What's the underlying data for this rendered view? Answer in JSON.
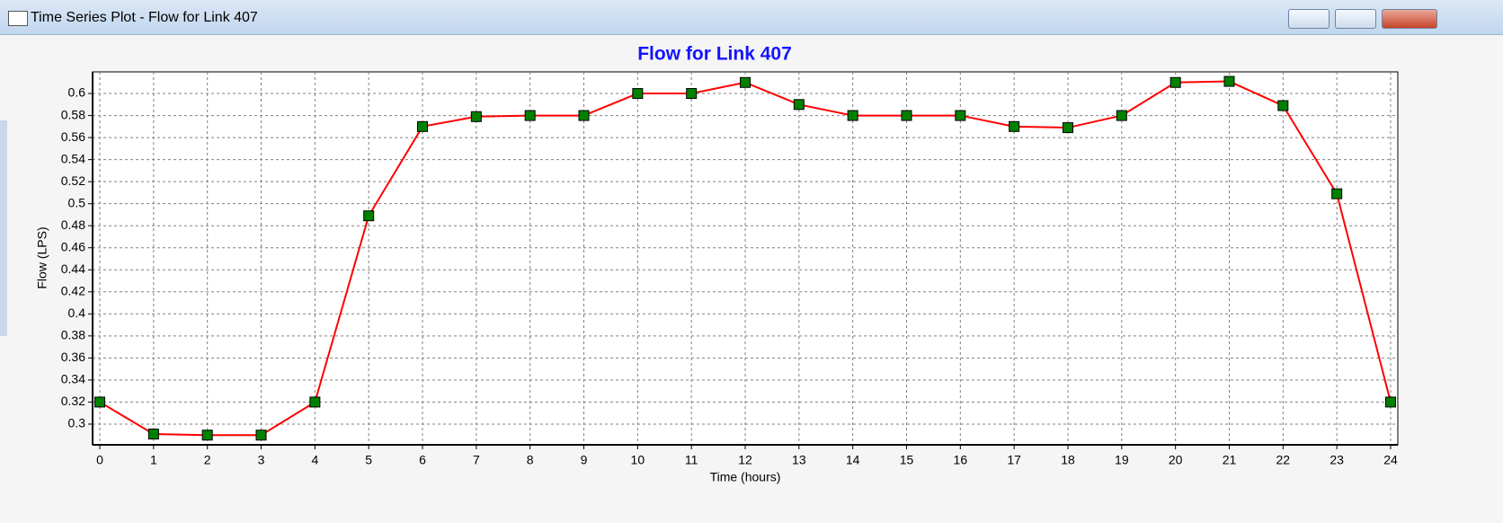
{
  "window": {
    "title": "Time Series Plot - Flow for Link 407"
  },
  "chart_data": {
    "type": "line",
    "title": "Flow for Link 407",
    "x_label": "Time (hours)",
    "y_label": "Flow (LPS)",
    "x": [
      0,
      1,
      2,
      3,
      4,
      5,
      6,
      7,
      8,
      9,
      10,
      11,
      12,
      13,
      14,
      15,
      16,
      17,
      18,
      19,
      20,
      21,
      22,
      23,
      24
    ],
    "series": [
      {
        "color": "#ff0000",
        "marker_color": "#008000",
        "values": [
          0.32,
          0.291,
          0.29,
          0.29,
          0.32,
          0.489,
          0.57,
          0.579,
          0.58,
          0.58,
          0.6,
          0.6,
          0.61,
          0.59,
          0.58,
          0.58,
          0.58,
          0.57,
          0.569,
          0.58,
          0.61,
          0.611,
          0.589,
          0.509,
          0.32
        ]
      }
    ],
    "xlim": [
      -0.134,
      24.134
    ],
    "xticks": [
      0,
      1,
      2,
      3,
      4,
      5,
      6,
      7,
      8,
      9,
      10,
      11,
      12,
      13,
      14,
      15,
      16,
      17,
      18,
      19,
      20,
      21,
      22,
      23,
      24
    ],
    "ylim": [
      0.2812,
      0.6196
    ],
    "yticks": [
      0.3,
      0.32,
      0.34,
      0.36,
      0.38,
      0.4,
      0.42,
      0.44,
      0.46,
      0.48,
      0.5,
      0.52,
      0.54,
      0.56,
      0.58,
      0.6
    ],
    "grid": true
  }
}
